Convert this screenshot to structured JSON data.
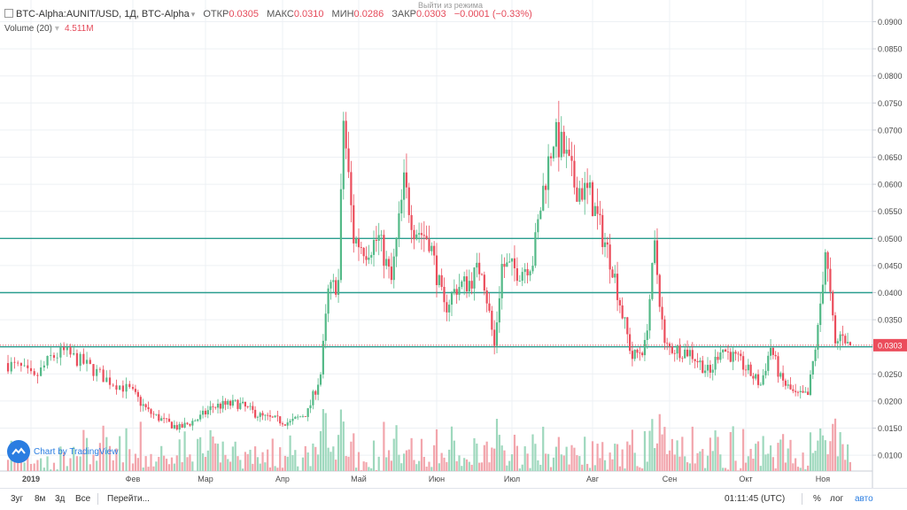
{
  "legend": {
    "symbol": "BTC-Alpha:AUNIT/USD, 1Д, BTC-Alpha",
    "open_label": "ОТКР",
    "open_value": "0.0305",
    "high_label": "МАКС",
    "high_value": "0.0310",
    "low_label": "МИН",
    "low_value": "0.0286",
    "close_label": "ЗАКР",
    "close_value": "0.0303",
    "change": "−0.0001 (−0.33%)",
    "volume_label": "Volume (20)",
    "volume_value": "4.511M"
  },
  "tooltip": "Выйти из режима",
  "watermark": "Chart by TradingView",
  "last_price_label": "0.0303",
  "bottom_bar": {
    "ranges": [
      "3уг",
      "8м",
      "3д",
      "Все"
    ],
    "goto": "Перейти...",
    "time": "01:11:45 (UTC)",
    "percent": "%",
    "log": "лог",
    "auto": "авто"
  },
  "colors": {
    "up": "#53b987",
    "down": "#eb4d5c",
    "up_volume": "#9ed8bd",
    "down_volume": "#f2a5ac",
    "grid": "#edf0f4",
    "level_line": "#2a9d8f",
    "last_price": "#eb4d5c"
  },
  "chart_data": {
    "type": "candlestick",
    "x_axis_labels": [
      "2019",
      "Фев",
      "Мар",
      "Апр",
      "Май",
      "Июн",
      "Июл",
      "Авг",
      "Сен",
      "Окт",
      "Ноя"
    ],
    "y_axis_labels": [
      "0.0900",
      "0.0850",
      "0.0800",
      "0.0750",
      "0.0700",
      "0.0650",
      "0.0600",
      "0.0550",
      "0.0500",
      "0.0450",
      "0.0400",
      "0.0350",
      "0.0300",
      "0.0250",
      "0.0200",
      "0.0150",
      "0.0100"
    ],
    "ylim": [
      0.008,
      0.092
    ],
    "start_date": "2018-12-25",
    "end_date": "2019-11-12",
    "horizontal_levels": [
      0.05,
      0.04,
      0.03
    ],
    "last_price": 0.0303,
    "grid": true,
    "path_keypoints": [
      [
        "2018-12-25",
        0.027
      ],
      [
        "2018-12-30",
        0.026
      ],
      [
        "2019-01-03",
        0.024
      ],
      [
        "2019-01-08",
        0.028
      ],
      [
        "2019-01-12",
        0.029
      ],
      [
        "2019-01-18",
        0.027
      ],
      [
        "2019-01-25",
        0.024
      ],
      [
        "2019-02-01",
        0.022
      ],
      [
        "2019-02-08",
        0.018
      ],
      [
        "2019-02-15",
        0.016
      ],
      [
        "2019-02-20",
        0.015
      ],
      [
        "2019-02-28",
        0.017
      ],
      [
        "2019-03-05",
        0.019
      ],
      [
        "2019-03-15",
        0.0195
      ],
      [
        "2019-03-25",
        0.017
      ],
      [
        "2019-04-05",
        0.016
      ],
      [
        "2019-04-12",
        0.018
      ],
      [
        "2019-04-17",
        0.025
      ],
      [
        "2019-04-20",
        0.04
      ],
      [
        "2019-04-24",
        0.042
      ],
      [
        "2019-04-26",
        0.072
      ],
      [
        "2019-04-30",
        0.05
      ],
      [
        "2019-05-05",
        0.048
      ],
      [
        "2019-05-10",
        0.05
      ],
      [
        "2019-05-15",
        0.042
      ],
      [
        "2019-05-20",
        0.06
      ],
      [
        "2019-05-24",
        0.052
      ],
      [
        "2019-05-30",
        0.05
      ],
      [
        "2019-06-05",
        0.037
      ],
      [
        "2019-06-10",
        0.041
      ],
      [
        "2019-06-15",
        0.042
      ],
      [
        "2019-06-20",
        0.045
      ],
      [
        "2019-06-25",
        0.03
      ],
      [
        "2019-06-28",
        0.045
      ],
      [
        "2019-07-05",
        0.044
      ],
      [
        "2019-07-10",
        0.046
      ],
      [
        "2019-07-14",
        0.059
      ],
      [
        "2019-07-18",
        0.069
      ],
      [
        "2019-07-22",
        0.066
      ],
      [
        "2019-07-26",
        0.06
      ],
      [
        "2019-08-01",
        0.058
      ],
      [
        "2019-08-05",
        0.052
      ],
      [
        "2019-08-10",
        0.045
      ],
      [
        "2019-08-14",
        0.036
      ],
      [
        "2019-08-18",
        0.028
      ],
      [
        "2019-08-23",
        0.03
      ],
      [
        "2019-08-27",
        0.048
      ],
      [
        "2019-08-31",
        0.03
      ],
      [
        "2019-09-10",
        0.029
      ],
      [
        "2019-09-18",
        0.025
      ],
      [
        "2019-09-22",
        0.03
      ],
      [
        "2019-09-30",
        0.027
      ],
      [
        "2019-10-08",
        0.023
      ],
      [
        "2019-10-12",
        0.03
      ],
      [
        "2019-10-16",
        0.024
      ],
      [
        "2019-10-22",
        0.021
      ],
      [
        "2019-10-27",
        0.021
      ],
      [
        "2019-10-31",
        0.033
      ],
      [
        "2019-11-03",
        0.048
      ],
      [
        "2019-11-07",
        0.03
      ],
      [
        "2019-11-10",
        0.033
      ],
      [
        "2019-11-12",
        0.0303
      ]
    ]
  }
}
